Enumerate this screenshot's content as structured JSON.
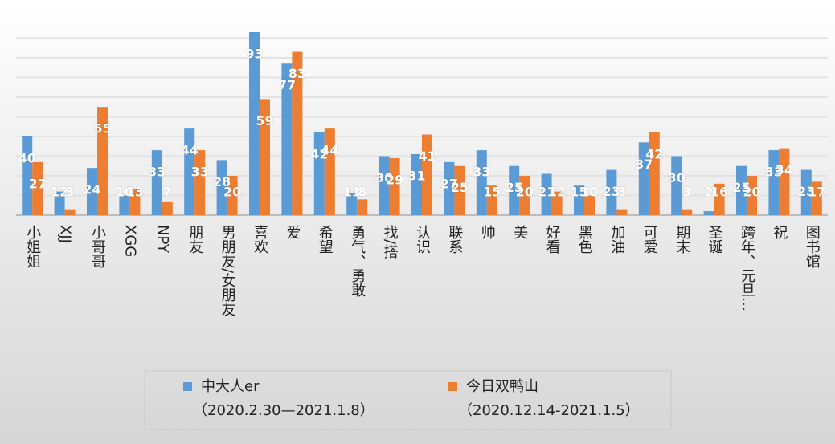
{
  "chart_data": {
    "type": "bar",
    "categories": [
      "小姐姐",
      "XJJ",
      "小哥哥",
      "XGG",
      "NPY",
      "朋友",
      "男朋友/女朋友",
      "喜欢",
      "爱",
      "希望",
      "勇气、勇敢",
      "找/搭",
      "认识",
      "联系",
      "帅",
      "美",
      "好看",
      "黑色",
      "加油",
      "可爱",
      "期末",
      "圣诞",
      "跨年、元旦…",
      "祝",
      "图书馆"
    ],
    "series": [
      {
        "name": "中大人er",
        "period": "（2020.2.30—2021.1.8）",
        "color": "#5b9bd5",
        "values": [
          40,
          12,
          24,
          10,
          33,
          44,
          28,
          93,
          77,
          42,
          11,
          30,
          31,
          27,
          33,
          25,
          21,
          15,
          23,
          37,
          30,
          2,
          25,
          33,
          23
        ]
      },
      {
        "name": "今日双鸭山",
        "period": "（2020.12.14-2021.1.5）",
        "color": "#ed7d31",
        "values": [
          27,
          3,
          55,
          13,
          7,
          33,
          20,
          59,
          83,
          44,
          8,
          29,
          41,
          25,
          15,
          20,
          12,
          10,
          3,
          42,
          3,
          16,
          20,
          34,
          17
        ]
      }
    ],
    "ylim": [
      0,
      100
    ],
    "yticks": [
      0,
      10,
      20,
      30,
      40,
      50,
      60,
      70,
      80,
      90
    ],
    "grid": true
  }
}
